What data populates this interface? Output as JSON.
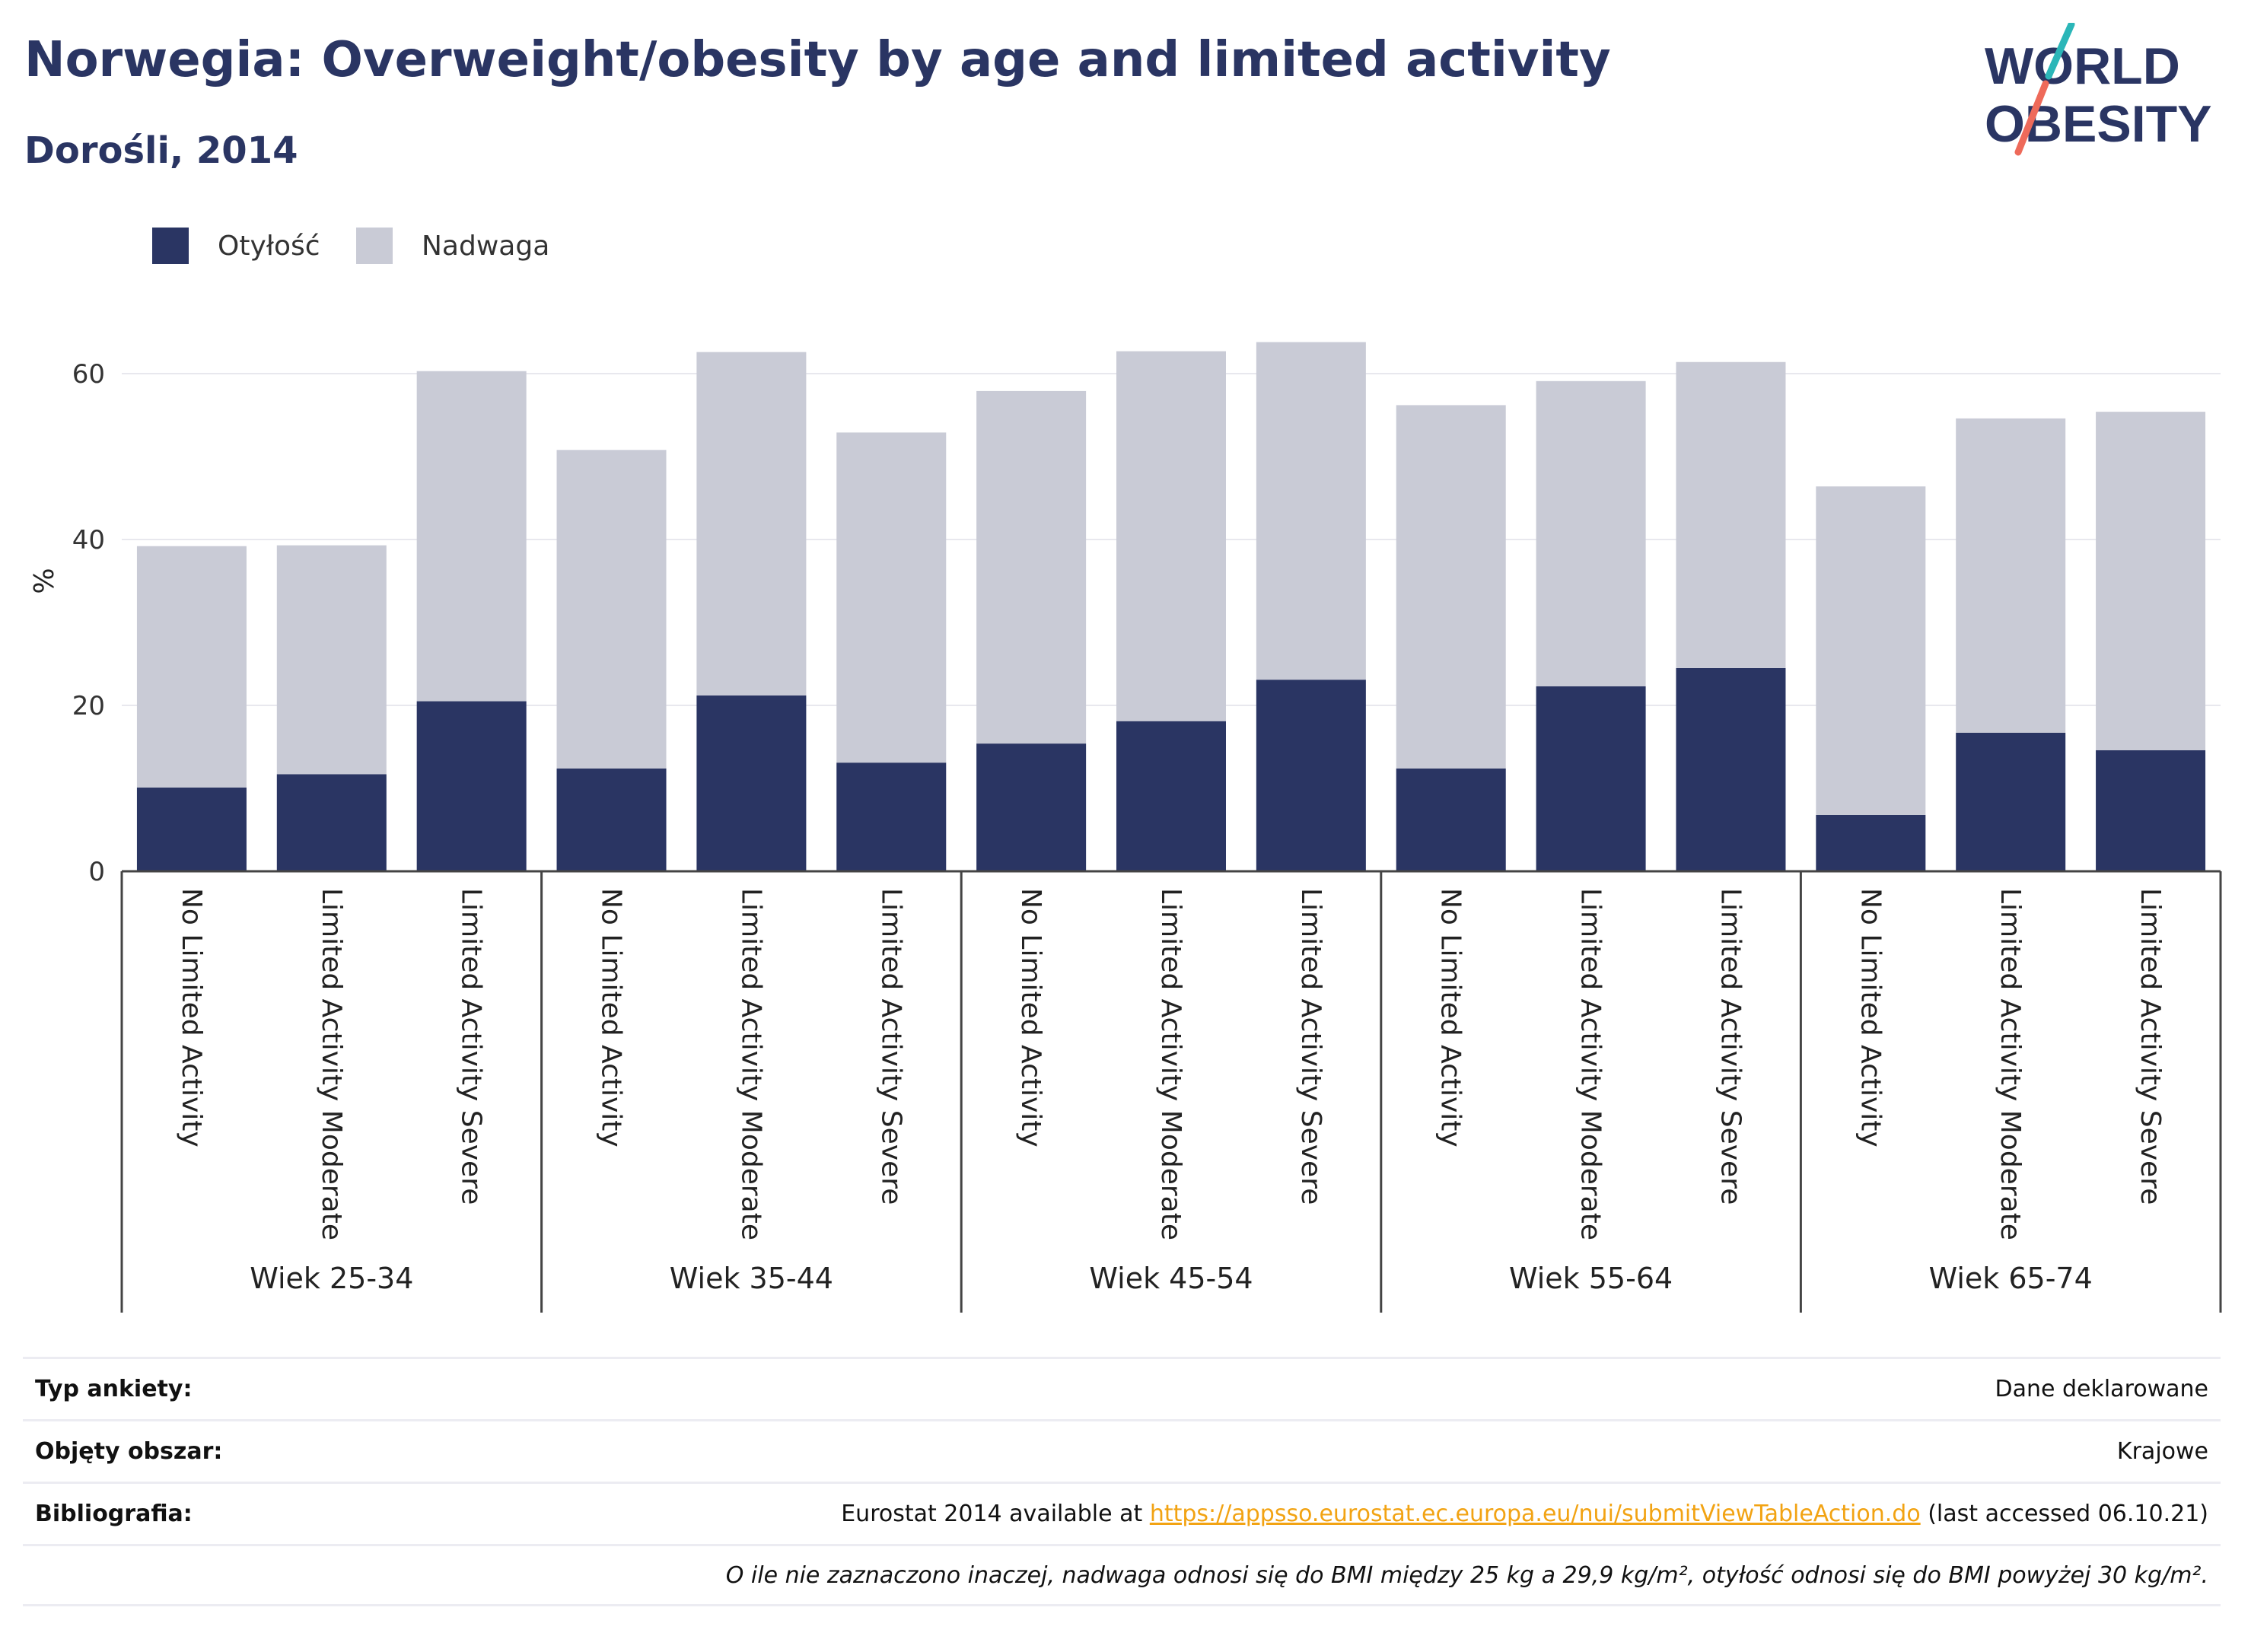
{
  "header": {
    "title": "Norwegia: Overweight/obesity by age and limited activity",
    "subtitle": "Dorośli, 2014"
  },
  "logo": {
    "line1": "WORLD",
    "line2": "OBESITY",
    "colors": {
      "text": "#2a3563",
      "slash_top": "#2bb6b8",
      "slash_bottom": "#ee6a5a"
    }
  },
  "colors": {
    "obesity": "#2a3563",
    "overweight": "#c9cbd6",
    "grid": "#e8e8ee",
    "axis": "#444444"
  },
  "chart_data": {
    "type": "bar",
    "stacked": true,
    "ylabel": "%",
    "ylim": [
      0,
      70
    ],
    "yticks": [
      0,
      20,
      40,
      60
    ],
    "grid": true,
    "legend_position": "top-left",
    "groups": [
      "Wiek 25-34",
      "Wiek 35-44",
      "Wiek 45-54",
      "Wiek 55-64",
      "Wiek 65-74"
    ],
    "subcategories": [
      "No Limited Activity",
      "Limited Activity Moderate",
      "Limited Activity Severe"
    ],
    "series": [
      {
        "name": "Otyłość",
        "values": [
          10.1,
          11.7,
          20.5,
          12.4,
          21.2,
          13.1,
          15.4,
          18.1,
          23.1,
          12.4,
          22.3,
          24.5,
          6.8,
          16.7,
          14.6
        ]
      },
      {
        "name": "Nadwaga",
        "values": [
          29.1,
          27.6,
          39.8,
          38.4,
          41.4,
          39.8,
          42.5,
          44.6,
          40.7,
          43.8,
          36.8,
          36.9,
          39.6,
          37.9,
          40.8
        ]
      }
    ]
  },
  "info": {
    "rows": [
      {
        "key": "Typ ankiety:",
        "value": "Dane deklarowane"
      },
      {
        "key": "Objęty obszar:",
        "value": "Krajowe"
      },
      {
        "key": "Bibliografia:",
        "value_prefix": "Eurostat 2014 available at ",
        "link": "https://appsso.eurostat.ec.europa.eu/nui/submitViewTableAction.do",
        "value_suffix": " (last accessed 06.10.21)"
      }
    ],
    "note": "O ile nie zaznaczono inaczej, nadwaga odnosi się do BMI między 25 kg a 29,9 kg/m², otyłość odnosi się do BMI powyżej 30 kg/m²."
  }
}
